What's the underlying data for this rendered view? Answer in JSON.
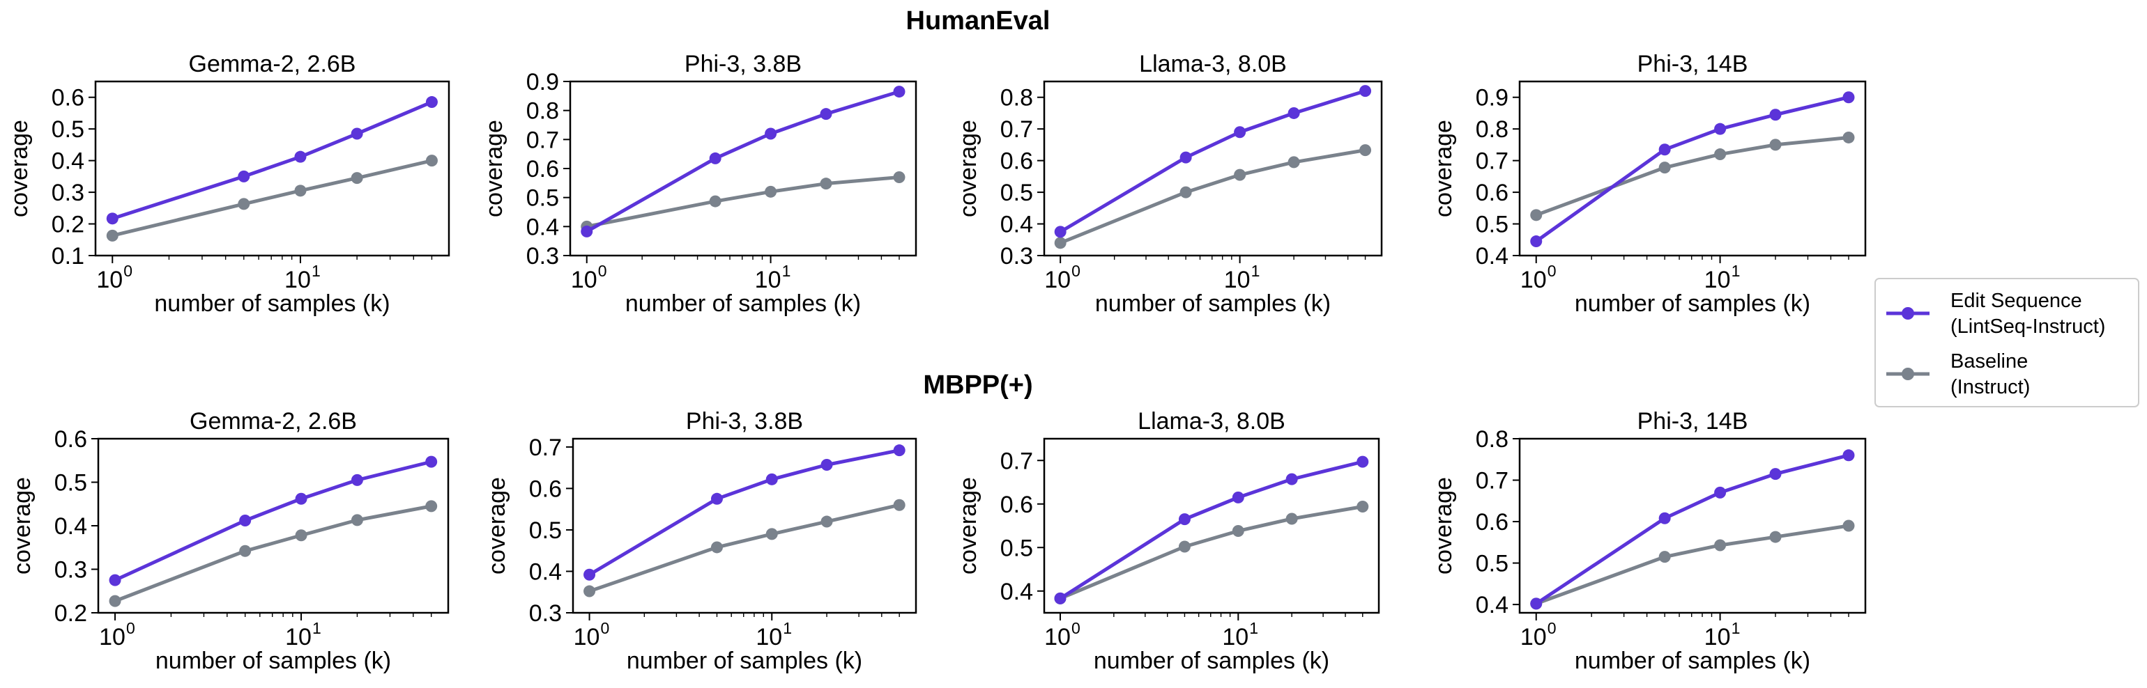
{
  "colors": {
    "edit_sequence": "#5b34d9",
    "baseline": "#7a828c"
  },
  "chart_data": [
    {
      "type": "line",
      "row_title": "HumanEval",
      "title": "Gemma-2, 2.6B",
      "xlabel": "number of samples (k)",
      "ylabel": "coverage",
      "xscale": "log",
      "x": [
        1,
        5,
        10,
        20,
        50
      ],
      "ylim": [
        0.1,
        0.65
      ],
      "yticks": [
        "0.1",
        "0.2",
        "0.3",
        "0.4",
        "0.5",
        "0.6"
      ],
      "series": [
        {
          "name": "Edit Sequence (LintSeq-Instruct)",
          "values": [
            0.217,
            0.35,
            0.412,
            0.485,
            0.585
          ]
        },
        {
          "name": "Baseline (Instruct)",
          "values": [
            0.163,
            0.263,
            0.305,
            0.345,
            0.4
          ]
        }
      ]
    },
    {
      "type": "line",
      "row_title": "HumanEval",
      "title": "Phi-3, 3.8B",
      "xlabel": "number of samples (k)",
      "ylabel": "coverage",
      "xscale": "log",
      "x": [
        1,
        5,
        10,
        20,
        50
      ],
      "ylim": [
        0.3,
        0.9
      ],
      "yticks": [
        "0.3",
        "0.4",
        "0.5",
        "0.6",
        "0.7",
        "0.8",
        "0.9"
      ],
      "series": [
        {
          "name": "Edit Sequence (LintSeq-Instruct)",
          "values": [
            0.383,
            0.635,
            0.72,
            0.788,
            0.865
          ]
        },
        {
          "name": "Baseline (Instruct)",
          "values": [
            0.4,
            0.487,
            0.52,
            0.548,
            0.57
          ]
        }
      ]
    },
    {
      "type": "line",
      "row_title": "HumanEval",
      "title": "Llama-3, 8.0B",
      "xlabel": "number of samples (k)",
      "ylabel": "coverage",
      "xscale": "log",
      "x": [
        1,
        5,
        10,
        20,
        50
      ],
      "ylim": [
        0.3,
        0.85
      ],
      "yticks": [
        "0.3",
        "0.4",
        "0.5",
        "0.6",
        "0.7",
        "0.8"
      ],
      "series": [
        {
          "name": "Edit Sequence (LintSeq-Instruct)",
          "values": [
            0.375,
            0.61,
            0.69,
            0.75,
            0.82
          ]
        },
        {
          "name": "Baseline (Instruct)",
          "values": [
            0.34,
            0.5,
            0.555,
            0.595,
            0.633
          ]
        }
      ]
    },
    {
      "type": "line",
      "row_title": "HumanEval",
      "title": "Phi-3, 14B",
      "xlabel": "number of samples (k)",
      "ylabel": "coverage",
      "xscale": "log",
      "x": [
        1,
        5,
        10,
        20,
        50
      ],
      "ylim": [
        0.4,
        0.95
      ],
      "yticks": [
        "0.4",
        "0.5",
        "0.6",
        "0.7",
        "0.8",
        "0.9"
      ],
      "series": [
        {
          "name": "Edit Sequence (LintSeq-Instruct)",
          "values": [
            0.445,
            0.735,
            0.8,
            0.845,
            0.9
          ]
        },
        {
          "name": "Baseline (Instruct)",
          "values": [
            0.528,
            0.678,
            0.72,
            0.75,
            0.773
          ]
        }
      ]
    },
    {
      "type": "line",
      "row_title": "MBPP(+)",
      "title": "Gemma-2, 2.6B",
      "xlabel": "number of samples (k)",
      "ylabel": "coverage",
      "xscale": "log",
      "x": [
        1,
        5,
        10,
        20,
        50
      ],
      "ylim": [
        0.2,
        0.6
      ],
      "yticks": [
        "0.2",
        "0.3",
        "0.4",
        "0.5",
        "0.6"
      ],
      "series": [
        {
          "name": "Edit Sequence (LintSeq-Instruct)",
          "values": [
            0.275,
            0.412,
            0.462,
            0.505,
            0.547
          ]
        },
        {
          "name": "Baseline (Instruct)",
          "values": [
            0.227,
            0.342,
            0.378,
            0.413,
            0.445
          ]
        }
      ]
    },
    {
      "type": "line",
      "row_title": "MBPP(+)",
      "title": "Phi-3, 3.8B",
      "xlabel": "number of samples (k)",
      "ylabel": "coverage",
      "xscale": "log",
      "x": [
        1,
        5,
        10,
        20,
        50
      ],
      "ylim": [
        0.3,
        0.72
      ],
      "yticks": [
        "0.3",
        "0.4",
        "0.5",
        "0.6",
        "0.7"
      ],
      "series": [
        {
          "name": "Edit Sequence (LintSeq-Instruct)",
          "values": [
            0.392,
            0.575,
            0.622,
            0.657,
            0.692
          ]
        },
        {
          "name": "Baseline (Instruct)",
          "values": [
            0.352,
            0.458,
            0.49,
            0.52,
            0.56
          ]
        }
      ]
    },
    {
      "type": "line",
      "row_title": "MBPP(+)",
      "title": "Llama-3, 8.0B",
      "xlabel": "number of samples (k)",
      "ylabel": "coverage",
      "xscale": "log",
      "x": [
        1,
        5,
        10,
        20,
        50
      ],
      "ylim": [
        0.35,
        0.75
      ],
      "yticks": [
        "0.4",
        "0.5",
        "0.6",
        "0.7"
      ],
      "series": [
        {
          "name": "Edit Sequence (LintSeq-Instruct)",
          "values": [
            0.383,
            0.565,
            0.615,
            0.657,
            0.697
          ]
        },
        {
          "name": "Baseline (Instruct)",
          "values": [
            0.383,
            0.502,
            0.538,
            0.566,
            0.594
          ]
        }
      ]
    },
    {
      "type": "line",
      "row_title": "MBPP(+)",
      "title": "Phi-3, 14B",
      "xlabel": "number of samples (k)",
      "ylabel": "coverage",
      "xscale": "log",
      "x": [
        1,
        5,
        10,
        20,
        50
      ],
      "ylim": [
        0.38,
        0.8
      ],
      "yticks": [
        "0.4",
        "0.5",
        "0.6",
        "0.7",
        "0.8"
      ],
      "series": [
        {
          "name": "Edit Sequence (LintSeq-Instruct)",
          "values": [
            0.402,
            0.608,
            0.67,
            0.715,
            0.76
          ]
        },
        {
          "name": "Baseline (Instruct)",
          "values": [
            0.402,
            0.515,
            0.543,
            0.563,
            0.59
          ]
        }
      ]
    }
  ],
  "legend": {
    "position": "right",
    "items": [
      {
        "line1": "Edit Sequence",
        "line2": "(LintSeq-Instruct)"
      },
      {
        "line1": "Baseline",
        "line2": "(Instruct)"
      }
    ]
  }
}
